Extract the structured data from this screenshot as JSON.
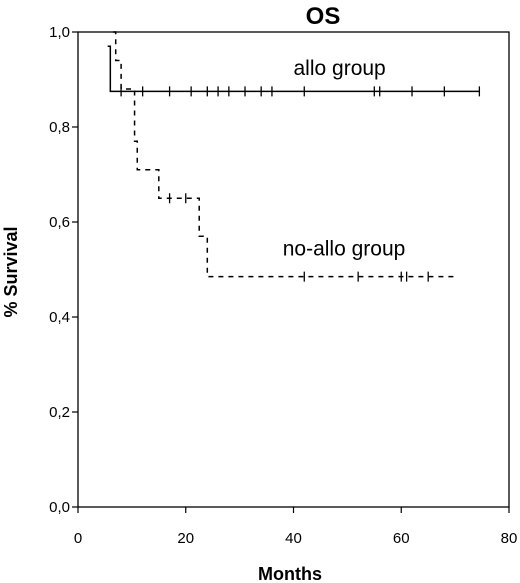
{
  "chart_data": {
    "type": "line",
    "title": "OS",
    "xlabel": "Months",
    "ylabel": "% Survival",
    "xlim": [
      0,
      80
    ],
    "ylim": [
      0.0,
      1.0
    ],
    "x_ticks": [
      0,
      20,
      40,
      60,
      80
    ],
    "x_tick_labels": [
      "0",
      "20",
      "40",
      "60",
      "80"
    ],
    "y_ticks": [
      0.0,
      0.2,
      0.4,
      0.6,
      0.8,
      1.0
    ],
    "y_tick_labels": [
      "0,0",
      "0,2",
      "0,4",
      "0,6",
      "0,8",
      "1,0"
    ],
    "grid": false,
    "series": [
      {
        "name": "allo group",
        "line_style": "solid",
        "color": "#000000",
        "steps": [
          [
            5.5,
            0.97
          ],
          [
            6.0,
            0.875
          ],
          [
            74.5,
            0.875
          ]
        ],
        "censored": [
          [
            8,
            0.875
          ],
          [
            12,
            0.875
          ],
          [
            17,
            0.875
          ],
          [
            21,
            0.875
          ],
          [
            24,
            0.875
          ],
          [
            26,
            0.875
          ],
          [
            28,
            0.875
          ],
          [
            31,
            0.875
          ],
          [
            34,
            0.875
          ],
          [
            36,
            0.875
          ],
          [
            42,
            0.875
          ],
          [
            55,
            0.875
          ],
          [
            56,
            0.875
          ],
          [
            62,
            0.875
          ],
          [
            68,
            0.875
          ],
          [
            74.5,
            0.875
          ]
        ]
      },
      {
        "name": "no-allo group",
        "line_style": "dashed",
        "color": "#000000",
        "steps": [
          [
            6.5,
            1.0
          ],
          [
            7.0,
            0.94
          ],
          [
            8.0,
            0.88
          ],
          [
            10.5,
            0.77
          ],
          [
            11.0,
            0.71
          ],
          [
            14.5,
            0.71
          ],
          [
            15.0,
            0.65
          ],
          [
            22.0,
            0.65
          ],
          [
            22.5,
            0.57
          ],
          [
            24.0,
            0.485
          ],
          [
            70.5,
            0.485
          ]
        ],
        "censored": [
          [
            17,
            0.65
          ],
          [
            20,
            0.65
          ],
          [
            42,
            0.485
          ],
          [
            52,
            0.485
          ],
          [
            60,
            0.485
          ],
          [
            61,
            0.485
          ],
          [
            65,
            0.485
          ]
        ]
      }
    ],
    "annotations": [
      {
        "text": "allo group",
        "x": 40,
        "y": 0.91
      },
      {
        "text": "no-allo group",
        "x": 38,
        "y": 0.53
      }
    ]
  }
}
